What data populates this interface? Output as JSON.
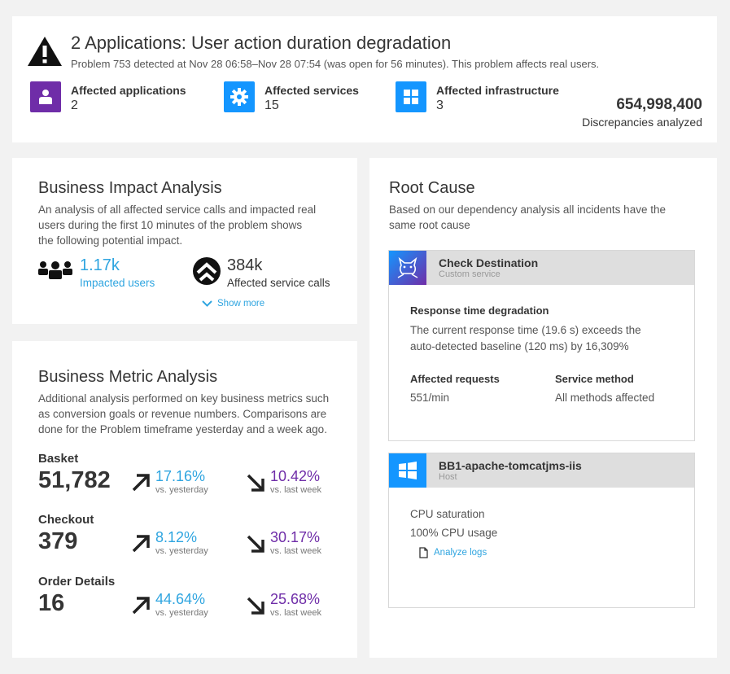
{
  "header": {
    "title": "2 Applications: User action duration degradation",
    "subtitle": "Problem 753 detected at Nov 28 06:58–Nov 28 07:54 (was open for 56 minutes). This problem affects real users.",
    "tiles": [
      {
        "label": "Affected applications",
        "value": "2",
        "icon": "user-app-icon",
        "color": "#6f2da8"
      },
      {
        "label": "Affected services",
        "value": "15",
        "icon": "gear-icon",
        "color": "#1496ff"
      },
      {
        "label": "Affected infrastructure",
        "value": "3",
        "icon": "infrastructure-icon",
        "color": "#1496ff"
      }
    ],
    "discrepancies_value": "654,998,400",
    "discrepancies_label": "Discrepancies analyzed"
  },
  "impact": {
    "title": "Business Impact Analysis",
    "description": "An analysis of all affected service calls and impacted real users during the first 10 minutes of the problem shows the following potential impact.",
    "users_value": "1.17k",
    "users_label": "Impacted users",
    "calls_value": "384k",
    "calls_label": "Affected service calls",
    "show_more": "Show more"
  },
  "metrics": {
    "title": "Business Metric Analysis",
    "description": "Additional analysis performed on key business metrics such as conversion goals or revenue numbers. Comparisons are done for the Problem timeframe yesterday and a week ago.",
    "items": [
      {
        "label": "Basket",
        "value": "51,782",
        "yesterday": "17.16%",
        "yesterday_label": "vs. yesterday",
        "week": "10.42%",
        "week_label": "vs. last week"
      },
      {
        "label": "Checkout",
        "value": "379",
        "yesterday": "8.12%",
        "yesterday_label": "vs. yesterday",
        "week": "30.17%",
        "week_label": "vs. last week"
      },
      {
        "label": "Order Details",
        "value": "16",
        "yesterday": "44.64%",
        "yesterday_label": "vs. yesterday",
        "week": "25.68%",
        "week_label": "vs. last week"
      }
    ]
  },
  "root_cause": {
    "title": "Root Cause",
    "description": "Based on our dependency analysis all incidents have the same root cause",
    "service": {
      "name": "Check Destination",
      "type": "Custom service",
      "issue_title": "Response time degradation",
      "issue_text": "The current response time (19.6 s) exceeds the auto-detected baseline (120 ms) by 16,309%",
      "requests_label": "Affected requests",
      "requests_value": "551/min",
      "method_label": "Service method",
      "method_value": "All methods affected"
    },
    "host": {
      "name": "BB1-apache-tomcatjms-iis",
      "type": "Host",
      "line1": "CPU saturation",
      "line2": "100% CPU usage",
      "link": "Analyze logs"
    }
  }
}
